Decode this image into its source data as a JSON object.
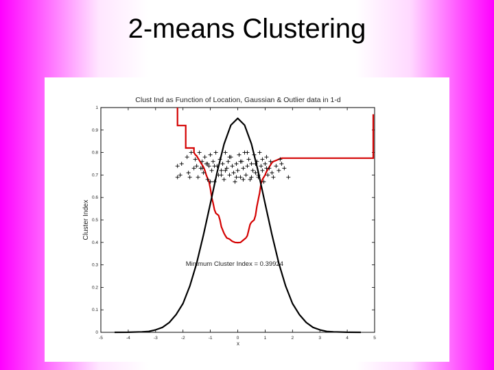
{
  "slide": {
    "title": "2-means Clustering"
  },
  "chart_data": {
    "type": "line",
    "title": "Clust Ind as Function of Location, Gaussian & Outlier data in 1-d",
    "xlabel": "x",
    "ylabel": "Cluster Index",
    "xlim": [
      -5,
      5
    ],
    "ylim": [
      0,
      1
    ],
    "xticks": [
      "-5",
      "-4",
      "-3",
      "-2",
      "-1",
      "0",
      "1",
      "2",
      "3",
      "4",
      "5"
    ],
    "yticks": [
      "0",
      "0.1",
      "0.2",
      "0.3",
      "0.4",
      "0.5",
      "0.6",
      "0.7",
      "0.8",
      "0.9",
      "1"
    ],
    "grid": false,
    "annotation": {
      "text": "Minimum Cluster Index = 0.39924",
      "x": -1.9,
      "y": 0.295
    },
    "colors": {
      "cluster_index": "#d40000",
      "density": "#000000",
      "points": "#000000"
    },
    "series": [
      {
        "style": "step",
        "color": "#d40000",
        "x": [
          -2.2,
          -2.2,
          -2.2,
          -1.9,
          -1.9,
          -1.6,
          -1.6,
          -1.55,
          -1.5,
          -1.45,
          -1.4,
          -1.35,
          -1.3,
          -1.25,
          -1.2,
          -1.15,
          -1.1,
          -1.05,
          -1.0,
          -0.95,
          -0.9,
          -0.85,
          -0.8,
          -0.7,
          -0.65,
          -0.6,
          -0.55,
          -0.5,
          -0.45,
          -0.4,
          -0.3,
          -0.2,
          -0.1,
          0,
          0.1,
          0.2,
          0.3,
          0.35,
          0.4,
          0.45,
          0.5,
          0.6,
          0.65,
          0.7,
          0.8,
          0.85,
          0.9,
          1.0,
          1.05,
          1.1,
          1.15,
          1.2,
          1.25,
          1.3,
          1.4,
          1.5,
          1.6,
          1.7,
          1.8,
          4.95,
          4.95
        ],
        "y": [
          1.0,
          0.92,
          0.92,
          0.92,
          0.82,
          0.82,
          0.8,
          0.79,
          0.785,
          0.775,
          0.765,
          0.755,
          0.745,
          0.735,
          0.72,
          0.7,
          0.685,
          0.67,
          0.64,
          0.6,
          0.575,
          0.545,
          0.53,
          0.52,
          0.5,
          0.47,
          0.455,
          0.44,
          0.43,
          0.42,
          0.415,
          0.405,
          0.4,
          0.399,
          0.4,
          0.41,
          0.42,
          0.43,
          0.455,
          0.48,
          0.49,
          0.5,
          0.52,
          0.56,
          0.62,
          0.66,
          0.68,
          0.7,
          0.715,
          0.725,
          0.735,
          0.745,
          0.755,
          0.76,
          0.765,
          0.77,
          0.775,
          0.775,
          0.775,
          0.775,
          0.97
        ]
      },
      {
        "style": "line",
        "color": "#000000",
        "x": [
          -4.5,
          -4.0,
          -3.5,
          -3.25,
          -3.0,
          -2.75,
          -2.5,
          -2.25,
          -2.0,
          -1.75,
          -1.5,
          -1.25,
          -1.0,
          -0.75,
          -0.5,
          -0.25,
          0,
          0.25,
          0.5,
          0.75,
          1.0,
          1.25,
          1.5,
          1.75,
          2.0,
          2.25,
          2.5,
          2.75,
          3.0,
          3.25,
          3.5,
          4.0,
          4.5
        ],
        "y": [
          0.0,
          0.0003,
          0.002,
          0.004,
          0.011,
          0.022,
          0.044,
          0.079,
          0.128,
          0.206,
          0.307,
          0.434,
          0.573,
          0.714,
          0.838,
          0.922,
          0.952,
          0.922,
          0.838,
          0.714,
          0.573,
          0.434,
          0.307,
          0.206,
          0.128,
          0.079,
          0.044,
          0.022,
          0.011,
          0.004,
          0.002,
          0.0003,
          0.0
        ]
      }
    ],
    "points": {
      "marker": "+",
      "x": [
        -2.2,
        -2.1,
        -2.2,
        -2.05,
        -1.85,
        -1.8,
        -1.75,
        -1.7,
        -1.6,
        -1.55,
        -1.5,
        -1.45,
        -1.4,
        -1.35,
        -1.3,
        -1.25,
        -1.2,
        -1.15,
        -1.1,
        -1.05,
        -1.0,
        -0.95,
        -0.9,
        -0.85,
        -0.8,
        -0.75,
        -0.7,
        -0.65,
        -0.6,
        -0.55,
        -0.5,
        -0.45,
        -0.4,
        -0.35,
        -0.3,
        -0.25,
        -0.2,
        -0.15,
        -0.1,
        -0.05,
        0.0,
        0.05,
        0.1,
        0.15,
        0.2,
        0.25,
        0.3,
        0.35,
        0.4,
        0.45,
        0.5,
        0.55,
        0.6,
        0.65,
        0.7,
        0.75,
        0.8,
        0.85,
        0.9,
        0.95,
        1.0,
        1.05,
        1.1,
        1.15,
        1.2,
        1.3,
        1.4,
        1.5,
        1.6,
        1.7,
        1.85,
        -1.0,
        -0.6,
        -0.3,
        0.1,
        0.35,
        0.5,
        0.9,
        1.05,
        -0.85,
        0.2,
        0.65,
        1.25,
        -0.05,
        -1.1,
        0.75,
        1.55,
        -0.45,
        -1.3
      ],
      "y": [
        0.74,
        0.7,
        0.69,
        0.75,
        0.78,
        0.71,
        0.69,
        0.8,
        0.73,
        0.77,
        0.74,
        0.69,
        0.8,
        0.73,
        0.76,
        0.71,
        0.78,
        0.75,
        0.68,
        0.74,
        0.79,
        0.72,
        0.76,
        0.67,
        0.8,
        0.74,
        0.7,
        0.77,
        0.72,
        0.75,
        0.68,
        0.8,
        0.73,
        0.76,
        0.7,
        0.78,
        0.74,
        0.71,
        0.67,
        0.75,
        0.72,
        0.79,
        0.69,
        0.76,
        0.73,
        0.8,
        0.7,
        0.74,
        0.77,
        0.68,
        0.75,
        0.72,
        0.79,
        0.71,
        0.76,
        0.69,
        0.8,
        0.74,
        0.72,
        0.67,
        0.75,
        0.78,
        0.7,
        0.73,
        0.76,
        0.69,
        0.74,
        0.72,
        0.75,
        0.73,
        0.69,
        0.67,
        0.7,
        0.78,
        0.76,
        0.8,
        0.69,
        0.77,
        0.73,
        0.74,
        0.68,
        0.75,
        0.71,
        0.69,
        0.75,
        0.7,
        0.77,
        0.72,
        0.73
      ]
    }
  }
}
